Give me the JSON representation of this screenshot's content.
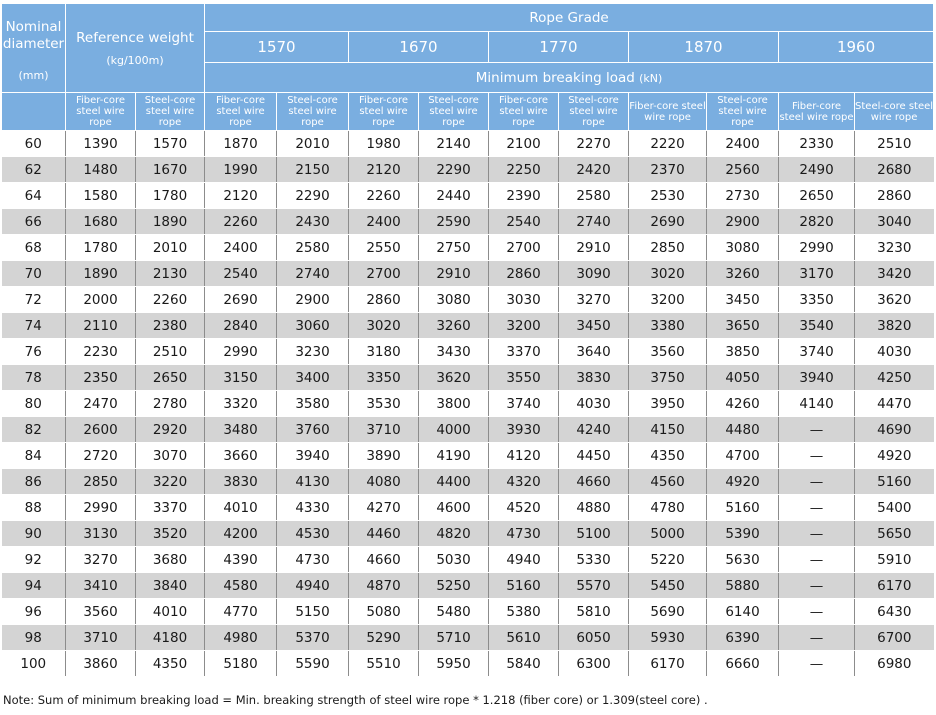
{
  "header": {
    "nominal_diameter": "Nominal diameter",
    "nominal_unit": "(mm)",
    "reference_weight": "Reference weight",
    "reference_unit": "(kg/100m)",
    "rope_grade": "Rope Grade",
    "grades": [
      "1570",
      "1670",
      "1770",
      "1870",
      "1960"
    ],
    "min_breaking_load": "Minimum breaking load",
    "min_breaking_unit": "(kN)",
    "fiber_core": "Fiber-core steel wire rope",
    "steel_core": "Steel-core steel wire rope"
  },
  "rows": [
    [
      "60",
      "1390",
      "1570",
      "1870",
      "2010",
      "1980",
      "2140",
      "2100",
      "2270",
      "2220",
      "2400",
      "2330",
      "2510"
    ],
    [
      "62",
      "1480",
      "1670",
      "1990",
      "2150",
      "2120",
      "2290",
      "2250",
      "2420",
      "2370",
      "2560",
      "2490",
      "2680"
    ],
    [
      "64",
      "1580",
      "1780",
      "2120",
      "2290",
      "2260",
      "2440",
      "2390",
      "2580",
      "2530",
      "2730",
      "2650",
      "2860"
    ],
    [
      "66",
      "1680",
      "1890",
      "2260",
      "2430",
      "2400",
      "2590",
      "2540",
      "2740",
      "2690",
      "2900",
      "2820",
      "3040"
    ],
    [
      "68",
      "1780",
      "2010",
      "2400",
      "2580",
      "2550",
      "2750",
      "2700",
      "2910",
      "2850",
      "3080",
      "2990",
      "3230"
    ],
    [
      "70",
      "1890",
      "2130",
      "2540",
      "2740",
      "2700",
      "2910",
      "2860",
      "3090",
      "3020",
      "3260",
      "3170",
      "3420"
    ],
    [
      "72",
      "2000",
      "2260",
      "2690",
      "2900",
      "2860",
      "3080",
      "3030",
      "3270",
      "3200",
      "3450",
      "3350",
      "3620"
    ],
    [
      "74",
      "2110",
      "2380",
      "2840",
      "3060",
      "3020",
      "3260",
      "3200",
      "3450",
      "3380",
      "3650",
      "3540",
      "3820"
    ],
    [
      "76",
      "2230",
      "2510",
      "2990",
      "3230",
      "3180",
      "3430",
      "3370",
      "3640",
      "3560",
      "3850",
      "3740",
      "4030"
    ],
    [
      "78",
      "2350",
      "2650",
      "3150",
      "3400",
      "3350",
      "3620",
      "3550",
      "3830",
      "3750",
      "4050",
      "3940",
      "4250"
    ],
    [
      "80",
      "2470",
      "2780",
      "3320",
      "3580",
      "3530",
      "3800",
      "3740",
      "4030",
      "3950",
      "4260",
      "4140",
      "4470"
    ],
    [
      "82",
      "2600",
      "2920",
      "3480",
      "3760",
      "3710",
      "4000",
      "3930",
      "4240",
      "4150",
      "4480",
      "—",
      "4690"
    ],
    [
      "84",
      "2720",
      "3070",
      "3660",
      "3940",
      "3890",
      "4190",
      "4120",
      "4450",
      "4350",
      "4700",
      "—",
      "4920"
    ],
    [
      "86",
      "2850",
      "3220",
      "3830",
      "4130",
      "4080",
      "4400",
      "4320",
      "4660",
      "4560",
      "4920",
      "—",
      "5160"
    ],
    [
      "88",
      "2990",
      "3370",
      "4010",
      "4330",
      "4270",
      "4600",
      "4520",
      "4880",
      "4780",
      "5160",
      "—",
      "5400"
    ],
    [
      "90",
      "3130",
      "3520",
      "4200",
      "4530",
      "4460",
      "4820",
      "4730",
      "5100",
      "5000",
      "5390",
      "—",
      "5650"
    ],
    [
      "92",
      "3270",
      "3680",
      "4390",
      "4730",
      "4660",
      "5030",
      "4940",
      "5330",
      "5220",
      "5630",
      "—",
      "5910"
    ],
    [
      "94",
      "3410",
      "3840",
      "4580",
      "4940",
      "4870",
      "5250",
      "5160",
      "5570",
      "5450",
      "5880",
      "—",
      "6170"
    ],
    [
      "96",
      "3560",
      "4010",
      "4770",
      "5150",
      "5080",
      "5480",
      "5380",
      "5810",
      "5690",
      "6140",
      "—",
      "6430"
    ],
    [
      "98",
      "3710",
      "4180",
      "4980",
      "5370",
      "5290",
      "5710",
      "5610",
      "6050",
      "5930",
      "6390",
      "—",
      "6700"
    ],
    [
      "100",
      "3860",
      "4350",
      "5180",
      "5590",
      "5510",
      "5950",
      "5840",
      "6300",
      "6170",
      "6660",
      "—",
      "6980"
    ]
  ],
  "note": "Note:  Sum of minimum breaking load = Min. breaking strength of steel wire rope * 1.218 (fiber core) or 1.309(steel core) ."
}
